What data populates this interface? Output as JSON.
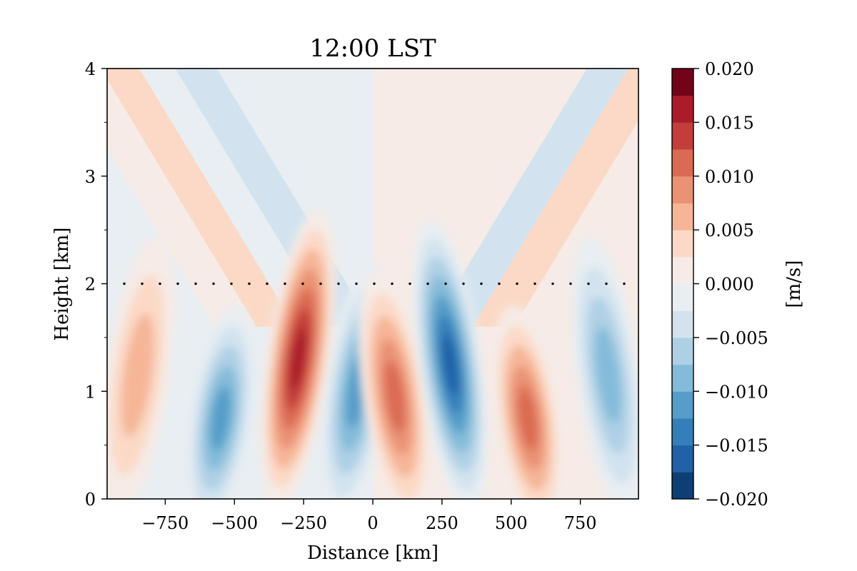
{
  "chart_data": {
    "type": "filled-contour",
    "title": "12:00 LST",
    "xlabel": "Distance [km]",
    "ylabel": "Height [km]",
    "xlim": [
      -960,
      960
    ],
    "ylim": [
      0,
      4
    ],
    "x_ticks": [
      -750,
      -500,
      -250,
      0,
      250,
      500,
      750
    ],
    "x_tick_labels": [
      "−750",
      "−500",
      "−250",
      "0",
      "250",
      "500",
      "750"
    ],
    "y_ticks": [
      0,
      1,
      2,
      3,
      4
    ],
    "y_tick_labels": [
      "0",
      "1",
      "2",
      "3",
      "4"
    ],
    "reference_line": {
      "style": "dotted",
      "y": 2
    },
    "colorbar": {
      "label": "[m/s]",
      "range": [
        -0.02,
        0.02
      ],
      "levels": [
        -0.02,
        -0.0175,
        -0.015,
        -0.0125,
        -0.01,
        -0.0075,
        -0.005,
        -0.0025,
        0,
        0.0025,
        0.005,
        0.0075,
        0.01,
        0.0125,
        0.015,
        0.0175,
        0.02
      ],
      "colors": [
        "#0d3f75",
        "#1f62a7",
        "#347fba",
        "#559ec9",
        "#84bbd9",
        "#aed0e5",
        "#d2e3ef",
        "#e8eef2",
        "#f6ebe6",
        "#fbd9c6",
        "#f6b597",
        "#ea9274",
        "#db6a52",
        "#c33e3b",
        "#ab1c29",
        "#720318"
      ],
      "tick_values": [
        0.02,
        0.015,
        0.01,
        0.005,
        0,
        -0.005,
        -0.01,
        -0.015,
        -0.02
      ],
      "tick_labels": [
        "0.020",
        "0.015",
        "0.010",
        "0.005",
        "0.000",
        "−0.005",
        "−0.010",
        "−0.015",
        "−0.020"
      ]
    },
    "field": {
      "upper_bands": [
        {
          "side": "left",
          "value": -0.003,
          "offset_km": 0
        },
        {
          "side": "left",
          "value": 0.004,
          "offset_km": -280
        },
        {
          "side": "left",
          "value": 0.001,
          "offset_km": -420
        },
        {
          "side": "right",
          "value": 0.001,
          "offset_km": 0
        },
        {
          "side": "right",
          "value": -0.003,
          "offset_km": 210
        },
        {
          "side": "right",
          "value": 0.004,
          "offset_km": 360
        }
      ],
      "cells": [
        {
          "x": -850,
          "y": 1.15,
          "peak": 0.0075
        },
        {
          "x": -550,
          "y": 0.75,
          "peak": -0.012
        },
        {
          "x": -270,
          "y": 1.3,
          "peak": 0.016
        },
        {
          "x": -60,
          "y": 1.0,
          "peak": -0.0105
        },
        {
          "x": 80,
          "y": 0.95,
          "peak": 0.011
        },
        {
          "x": 280,
          "y": 1.25,
          "peak": -0.0155
        },
        {
          "x": 560,
          "y": 0.75,
          "peak": 0.0105
        },
        {
          "x": 850,
          "y": 1.15,
          "peak": -0.0085
        }
      ]
    }
  }
}
